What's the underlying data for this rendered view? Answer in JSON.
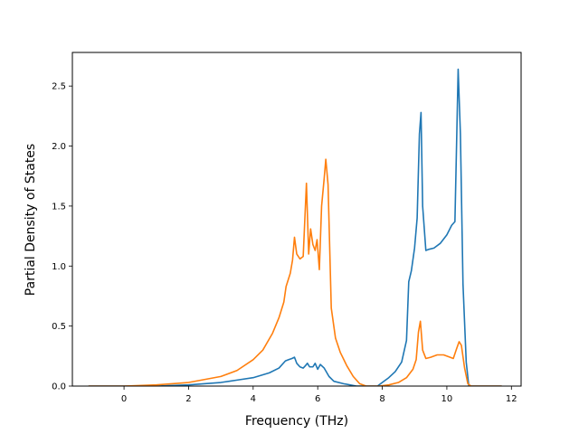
{
  "chart_data": {
    "type": "line",
    "title": "",
    "xlabel": "Frequency (THz)",
    "ylabel": "Partial Density of States",
    "xlim": [
      -1.6,
      12.3
    ],
    "ylim": [
      0,
      2.78
    ],
    "xticks": [
      0,
      2,
      4,
      6,
      8,
      10,
      12
    ],
    "xtick_labels": [
      "0",
      "2",
      "4",
      "6",
      "8",
      "10",
      "12"
    ],
    "yticks": [
      0.0,
      0.5,
      1.0,
      1.5,
      2.0,
      2.5
    ],
    "ytick_labels": [
      "0.0",
      "0.5",
      "1.0",
      "1.5",
      "2.0",
      "2.5"
    ],
    "grid": false,
    "legend": "none",
    "series": [
      {
        "color": "#1f77b4",
        "points": [
          [
            -1.1,
            0.0
          ],
          [
            1.0,
            0.0
          ],
          [
            2.0,
            0.01
          ],
          [
            3.0,
            0.03
          ],
          [
            3.5,
            0.05
          ],
          [
            4.0,
            0.07
          ],
          [
            4.5,
            0.11
          ],
          [
            4.8,
            0.15
          ],
          [
            5.0,
            0.21
          ],
          [
            5.1,
            0.22
          ],
          [
            5.2,
            0.23
          ],
          [
            5.28,
            0.24
          ],
          [
            5.35,
            0.19
          ],
          [
            5.45,
            0.16
          ],
          [
            5.55,
            0.15
          ],
          [
            5.62,
            0.17
          ],
          [
            5.68,
            0.19
          ],
          [
            5.75,
            0.16
          ],
          [
            5.85,
            0.16
          ],
          [
            5.92,
            0.19
          ],
          [
            6.0,
            0.14
          ],
          [
            6.08,
            0.18
          ],
          [
            6.2,
            0.15
          ],
          [
            6.35,
            0.08
          ],
          [
            6.5,
            0.04
          ],
          [
            6.8,
            0.02
          ],
          [
            7.2,
            0.0
          ],
          [
            7.85,
            0.0
          ],
          [
            8.0,
            0.03
          ],
          [
            8.2,
            0.07
          ],
          [
            8.4,
            0.12
          ],
          [
            8.6,
            0.2
          ],
          [
            8.75,
            0.38
          ],
          [
            8.82,
            0.87
          ],
          [
            8.9,
            0.96
          ],
          [
            9.0,
            1.15
          ],
          [
            9.08,
            1.4
          ],
          [
            9.15,
            2.1
          ],
          [
            9.2,
            2.28
          ],
          [
            9.25,
            1.5
          ],
          [
            9.35,
            1.13
          ],
          [
            9.45,
            1.14
          ],
          [
            9.6,
            1.15
          ],
          [
            9.8,
            1.19
          ],
          [
            10.0,
            1.26
          ],
          [
            10.15,
            1.34
          ],
          [
            10.25,
            1.37
          ],
          [
            10.3,
            2.0
          ],
          [
            10.35,
            2.64
          ],
          [
            10.42,
            2.1
          ],
          [
            10.5,
            0.85
          ],
          [
            10.6,
            0.2
          ],
          [
            10.68,
            0.0
          ],
          [
            11.7,
            0.0
          ]
        ]
      },
      {
        "color": "#ff7f0e",
        "points": [
          [
            -1.1,
            0.0
          ],
          [
            0.0,
            0.0
          ],
          [
            1.0,
            0.01
          ],
          [
            2.0,
            0.03
          ],
          [
            3.0,
            0.08
          ],
          [
            3.5,
            0.13
          ],
          [
            4.0,
            0.22
          ],
          [
            4.3,
            0.3
          ],
          [
            4.6,
            0.44
          ],
          [
            4.8,
            0.57
          ],
          [
            4.95,
            0.7
          ],
          [
            5.02,
            0.83
          ],
          [
            5.15,
            0.94
          ],
          [
            5.22,
            1.05
          ],
          [
            5.28,
            1.24
          ],
          [
            5.35,
            1.1
          ],
          [
            5.45,
            1.06
          ],
          [
            5.55,
            1.08
          ],
          [
            5.65,
            1.69
          ],
          [
            5.72,
            1.1
          ],
          [
            5.78,
            1.31
          ],
          [
            5.85,
            1.18
          ],
          [
            5.92,
            1.13
          ],
          [
            5.98,
            1.22
          ],
          [
            6.05,
            0.97
          ],
          [
            6.12,
            1.5
          ],
          [
            6.2,
            1.73
          ],
          [
            6.25,
            1.89
          ],
          [
            6.32,
            1.68
          ],
          [
            6.42,
            0.65
          ],
          [
            6.55,
            0.4
          ],
          [
            6.7,
            0.28
          ],
          [
            6.9,
            0.17
          ],
          [
            7.1,
            0.08
          ],
          [
            7.3,
            0.02
          ],
          [
            7.5,
            0.0
          ],
          [
            7.9,
            0.0
          ],
          [
            8.2,
            0.01
          ],
          [
            8.5,
            0.03
          ],
          [
            8.75,
            0.07
          ],
          [
            8.95,
            0.14
          ],
          [
            9.05,
            0.22
          ],
          [
            9.12,
            0.45
          ],
          [
            9.18,
            0.54
          ],
          [
            9.25,
            0.3
          ],
          [
            9.35,
            0.23
          ],
          [
            9.5,
            0.24
          ],
          [
            9.7,
            0.26
          ],
          [
            9.9,
            0.26
          ],
          [
            10.1,
            0.24
          ],
          [
            10.2,
            0.23
          ],
          [
            10.3,
            0.31
          ],
          [
            10.38,
            0.37
          ],
          [
            10.45,
            0.34
          ],
          [
            10.55,
            0.15
          ],
          [
            10.65,
            0.02
          ],
          [
            10.75,
            0.0
          ],
          [
            11.7,
            0.0
          ]
        ]
      }
    ]
  }
}
